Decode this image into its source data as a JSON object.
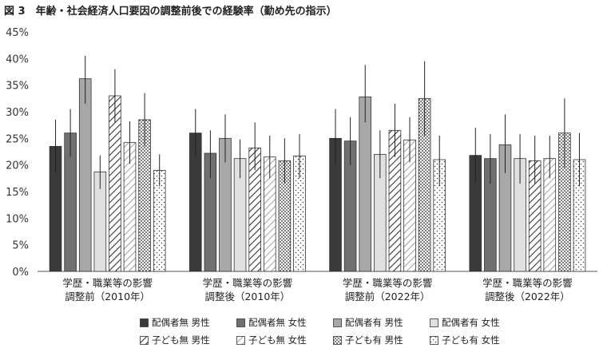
{
  "title": "図 3　年齢・社会経済人口要因の調整前後での経験率（勤め先の指示）",
  "chart_data": {
    "type": "bar",
    "categories": [
      [
        "学歴・職業等の影響",
        "調整前（2010年）"
      ],
      [
        "学歴・職業等の影響",
        "調整後（2010年）"
      ],
      [
        "学歴・職業等の影響",
        "調整前（2022年）"
      ],
      [
        "学歴・職業等の影響",
        "調整後（2022年）"
      ]
    ],
    "ylim": [
      0,
      45
    ],
    "yticks": [
      "0%",
      "5%",
      "10%",
      "15%",
      "20%",
      "25%",
      "30%",
      "35%",
      "40%",
      "45%"
    ],
    "grid": false,
    "legend_position": "bottom",
    "series": [
      {
        "name": "配偶者無 男性",
        "fill": "#3a3a3a",
        "pattern": "solid",
        "values": [
          23.5,
          26.0,
          25.0,
          21.8
        ],
        "err_low": [
          18.5,
          21.5,
          20.0,
          16.5
        ],
        "err_high": [
          28.5,
          30.5,
          30.5,
          27.0
        ]
      },
      {
        "name": "配偶者無 女性",
        "fill": "#707070",
        "pattern": "solid",
        "values": [
          26.0,
          22.2,
          24.5,
          21.2
        ],
        "err_low": [
          21.5,
          17.5,
          20.0,
          16.5
        ],
        "err_high": [
          30.5,
          26.5,
          29.0,
          25.8
        ]
      },
      {
        "name": "配偶者有 男性",
        "fill": "#a8a8a8",
        "pattern": "solid",
        "values": [
          36.2,
          25.0,
          32.8,
          23.8
        ],
        "err_low": [
          31.5,
          20.5,
          28.0,
          18.5
        ],
        "err_high": [
          40.5,
          29.5,
          38.8,
          29.5
        ]
      },
      {
        "name": "配偶者有 女性",
        "fill": "#e0e0e0",
        "pattern": "solid",
        "values": [
          18.7,
          21.2,
          22.0,
          21.2
        ],
        "err_low": [
          15.5,
          17.5,
          17.5,
          16.5
        ],
        "err_high": [
          21.8,
          24.8,
          26.5,
          25.8
        ]
      },
      {
        "name": "子ども無 男性",
        "fill": "#ffffff",
        "pattern": "hatch-bold",
        "values": [
          33.0,
          23.2,
          26.5,
          20.8
        ],
        "err_low": [
          28.0,
          19.0,
          21.5,
          16.5
        ],
        "err_high": [
          38.0,
          28.0,
          31.5,
          25.5
        ]
      },
      {
        "name": "子ども無 女性",
        "fill": "#ffffff",
        "pattern": "hatch-light",
        "values": [
          24.2,
          21.5,
          24.7,
          21.2
        ],
        "err_low": [
          20.2,
          17.5,
          20.5,
          17.5
        ],
        "err_high": [
          28.2,
          25.5,
          29.0,
          25.5
        ]
      },
      {
        "name": "子ども有 男性",
        "fill": "#ffffff",
        "pattern": "dots-dense",
        "values": [
          28.5,
          20.8,
          32.5,
          26.0
        ],
        "err_low": [
          23.5,
          16.5,
          25.5,
          19.5
        ],
        "err_high": [
          33.5,
          25.0,
          39.5,
          32.5
        ]
      },
      {
        "name": "子ども有 女性",
        "fill": "#ffffff",
        "pattern": "dots-sparse",
        "values": [
          19.0,
          21.7,
          21.0,
          21.0
        ],
        "err_low": [
          16.0,
          17.5,
          16.0,
          16.0
        ],
        "err_high": [
          22.0,
          25.8,
          25.5,
          26.0
        ]
      }
    ]
  }
}
